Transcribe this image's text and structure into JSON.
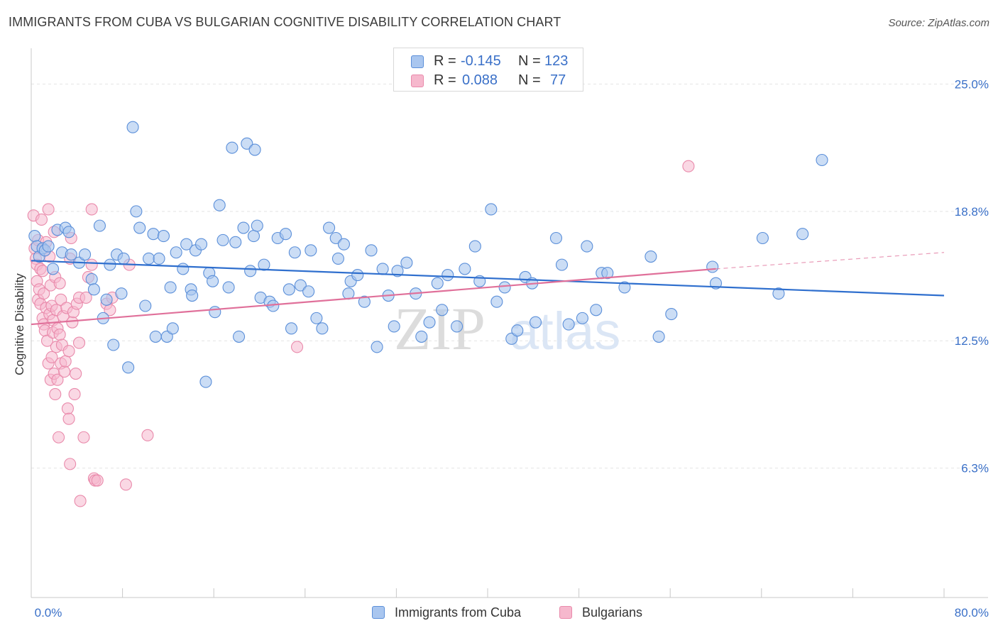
{
  "header": {
    "title": "IMMIGRANTS FROM CUBA VS BULGARIAN COGNITIVE DISABILITY CORRELATION CHART",
    "source": "Source: ZipAtlas.com"
  },
  "colors": {
    "blue_fill": "#a9c6ef",
    "blue_stroke": "#5b8fd9",
    "blue_line": "#2f6fce",
    "pink_fill": "#f6b8cd",
    "pink_stroke": "#e98aab",
    "pink_line": "#e0709a",
    "axis_text": "#3a70c8",
    "grid": "#e4e4e4"
  },
  "legend": {
    "series1": {
      "r_label": "R =",
      "r_value": "-0.145",
      "n_label": "N =",
      "n_value": "123"
    },
    "series2": {
      "r_label": "R =",
      "r_value": "0.088",
      "n_label": "N =",
      "n_value": "77"
    }
  },
  "bottom_legend": [
    "Immigrants from Cuba",
    "Bulgarians"
  ],
  "watermark": {
    "zip": "ZIP",
    "atlas": "atlas"
  },
  "chart_data": {
    "type": "scatter",
    "title": "IMMIGRANTS FROM CUBA VS BULGARIAN COGNITIVE DISABILITY CORRELATION CHART",
    "xlabel": "",
    "ylabel": "Cognitive Disability",
    "xlim": [
      0,
      80
    ],
    "ylim": [
      0,
      26.5
    ],
    "x_tick_labels": [
      "0.0%",
      "80.0%"
    ],
    "y_ticks": [
      6.3,
      12.5,
      18.8,
      25.0
    ],
    "y_tick_labels": [
      "6.3%",
      "12.5%",
      "18.8%",
      "25.0%"
    ],
    "grid": "horizontal dashed",
    "legend_placement": "top-center",
    "series": [
      {
        "name": "Immigrants from Cuba",
        "color": "#a9c6ef",
        "trend": {
          "x": [
            0,
            80
          ],
          "y": [
            16.4,
            14.7
          ]
        },
        "points": [
          [
            0.3,
            17.6
          ],
          [
            0.5,
            17.1
          ],
          [
            0.7,
            16.6
          ],
          [
            1.0,
            17.0
          ],
          [
            1.2,
            16.9
          ],
          [
            1.5,
            17.1
          ],
          [
            1.9,
            16.0
          ],
          [
            2.3,
            17.9
          ],
          [
            2.7,
            16.8
          ],
          [
            3.0,
            18.0
          ],
          [
            3.3,
            17.8
          ],
          [
            3.5,
            16.7
          ],
          [
            4.2,
            16.3
          ],
          [
            4.7,
            16.7
          ],
          [
            5.3,
            15.5
          ],
          [
            5.5,
            15.0
          ],
          [
            6.0,
            18.1
          ],
          [
            6.3,
            13.6
          ],
          [
            6.6,
            14.5
          ],
          [
            6.9,
            16.2
          ],
          [
            7.2,
            12.3
          ],
          [
            7.5,
            16.7
          ],
          [
            7.9,
            14.8
          ],
          [
            8.1,
            16.5
          ],
          [
            8.5,
            11.2
          ],
          [
            8.9,
            22.9
          ],
          [
            9.2,
            18.8
          ],
          [
            9.5,
            18.0
          ],
          [
            10.0,
            14.2
          ],
          [
            10.3,
            16.5
          ],
          [
            10.7,
            17.7
          ],
          [
            10.9,
            12.7
          ],
          [
            11.2,
            16.5
          ],
          [
            11.6,
            17.6
          ],
          [
            11.9,
            12.7
          ],
          [
            12.2,
            15.1
          ],
          [
            12.4,
            13.1
          ],
          [
            12.7,
            16.8
          ],
          [
            13.3,
            16.0
          ],
          [
            13.6,
            17.2
          ],
          [
            14.0,
            15.0
          ],
          [
            14.1,
            14.7
          ],
          [
            14.4,
            16.9
          ],
          [
            14.9,
            17.2
          ],
          [
            15.3,
            10.5
          ],
          [
            15.6,
            15.8
          ],
          [
            15.9,
            15.4
          ],
          [
            16.1,
            13.9
          ],
          [
            16.5,
            19.1
          ],
          [
            16.8,
            17.4
          ],
          [
            17.3,
            15.1
          ],
          [
            17.6,
            21.9
          ],
          [
            17.9,
            17.3
          ],
          [
            18.2,
            12.7
          ],
          [
            18.6,
            18.0
          ],
          [
            18.9,
            22.1
          ],
          [
            19.2,
            15.9
          ],
          [
            19.5,
            17.6
          ],
          [
            19.6,
            21.8
          ],
          [
            19.8,
            18.1
          ],
          [
            20.1,
            14.6
          ],
          [
            20.4,
            16.2
          ],
          [
            20.9,
            14.4
          ],
          [
            21.2,
            14.2
          ],
          [
            21.6,
            17.5
          ],
          [
            22.3,
            17.7
          ],
          [
            22.6,
            15.0
          ],
          [
            22.8,
            13.1
          ],
          [
            23.1,
            16.8
          ],
          [
            23.6,
            15.2
          ],
          [
            24.3,
            14.9
          ],
          [
            24.5,
            16.9
          ],
          [
            25.0,
            13.6
          ],
          [
            25.5,
            13.1
          ],
          [
            26.1,
            18.0
          ],
          [
            26.7,
            17.5
          ],
          [
            26.9,
            16.5
          ],
          [
            27.4,
            17.2
          ],
          [
            27.8,
            14.8
          ],
          [
            28.0,
            15.4
          ],
          [
            28.6,
            15.7
          ],
          [
            29.2,
            14.4
          ],
          [
            29.8,
            16.9
          ],
          [
            30.3,
            12.2
          ],
          [
            30.8,
            16.0
          ],
          [
            31.3,
            14.7
          ],
          [
            31.8,
            13.2
          ],
          [
            32.1,
            15.9
          ],
          [
            32.9,
            16.3
          ],
          [
            33.7,
            14.8
          ],
          [
            34.2,
            12.7
          ],
          [
            34.9,
            13.4
          ],
          [
            35.6,
            15.3
          ],
          [
            36.0,
            14.0
          ],
          [
            36.5,
            15.7
          ],
          [
            37.3,
            13.2
          ],
          [
            38.0,
            16.0
          ],
          [
            38.9,
            17.1
          ],
          [
            39.3,
            15.4
          ],
          [
            40.3,
            18.9
          ],
          [
            40.8,
            14.4
          ],
          [
            41.5,
            15.1
          ],
          [
            42.1,
            12.6
          ],
          [
            42.6,
            13.0
          ],
          [
            43.3,
            15.6
          ],
          [
            43.9,
            15.3
          ],
          [
            44.2,
            13.4
          ],
          [
            46.0,
            17.5
          ],
          [
            46.5,
            16.2
          ],
          [
            47.1,
            13.3
          ],
          [
            48.3,
            13.6
          ],
          [
            48.7,
            17.1
          ],
          [
            49.5,
            14.0
          ],
          [
            50.0,
            15.8
          ],
          [
            50.5,
            15.8
          ],
          [
            52.0,
            15.1
          ],
          [
            54.3,
            16.6
          ],
          [
            55.0,
            12.7
          ],
          [
            56.1,
            13.8
          ],
          [
            59.7,
            16.1
          ],
          [
            60.0,
            15.3
          ],
          [
            64.1,
            17.5
          ],
          [
            65.5,
            14.8
          ],
          [
            67.6,
            17.7
          ],
          [
            69.3,
            21.3
          ]
        ]
      },
      {
        "name": "Bulgarians",
        "color": "#f6b8cd",
        "trend": {
          "x": [
            0,
            60
          ],
          "y": [
            13.3,
            16.0
          ]
        },
        "trend_extension": {
          "x": [
            60,
            80
          ],
          "y": [
            16.0,
            16.8
          ]
        },
        "points": [
          [
            0.2,
            18.6
          ],
          [
            0.3,
            17.0
          ],
          [
            0.4,
            16.5
          ],
          [
            0.5,
            16.2
          ],
          [
            0.5,
            15.4
          ],
          [
            0.6,
            14.5
          ],
          [
            0.6,
            17.4
          ],
          [
            0.7,
            15.0
          ],
          [
            0.8,
            14.3
          ],
          [
            0.8,
            16.0
          ],
          [
            0.9,
            18.4
          ],
          [
            1.0,
            13.6
          ],
          [
            1.0,
            15.9
          ],
          [
            1.1,
            13.3
          ],
          [
            1.1,
            14.8
          ],
          [
            1.2,
            16.9
          ],
          [
            1.2,
            13.0
          ],
          [
            1.3,
            17.3
          ],
          [
            1.3,
            14.1
          ],
          [
            1.4,
            12.5
          ],
          [
            1.5,
            18.9
          ],
          [
            1.5,
            11.4
          ],
          [
            1.6,
            16.6
          ],
          [
            1.6,
            13.8
          ],
          [
            1.7,
            15.2
          ],
          [
            1.7,
            10.6
          ],
          [
            1.8,
            14.2
          ],
          [
            1.8,
            11.7
          ],
          [
            1.9,
            13.5
          ],
          [
            1.9,
            12.9
          ],
          [
            2.0,
            17.8
          ],
          [
            2.0,
            10.9
          ],
          [
            2.1,
            15.6
          ],
          [
            2.1,
            9.9
          ],
          [
            2.2,
            14.0
          ],
          [
            2.2,
            12.2
          ],
          [
            2.3,
            10.6
          ],
          [
            2.3,
            13.1
          ],
          [
            2.4,
            7.8
          ],
          [
            2.5,
            15.3
          ],
          [
            2.5,
            12.8
          ],
          [
            2.6,
            11.4
          ],
          [
            2.6,
            14.5
          ],
          [
            2.7,
            12.3
          ],
          [
            2.8,
            13.7
          ],
          [
            2.9,
            11.0
          ],
          [
            3.0,
            11.5
          ],
          [
            3.1,
            14.1
          ],
          [
            3.2,
            9.2
          ],
          [
            3.3,
            8.7
          ],
          [
            3.3,
            12.0
          ],
          [
            3.4,
            16.5
          ],
          [
            3.4,
            6.5
          ],
          [
            3.5,
            17.5
          ],
          [
            3.6,
            13.4
          ],
          [
            3.7,
            13.9
          ],
          [
            3.8,
            9.9
          ],
          [
            3.9,
            10.9
          ],
          [
            4.0,
            14.3
          ],
          [
            4.2,
            12.4
          ],
          [
            4.2,
            14.6
          ],
          [
            4.3,
            4.7
          ],
          [
            4.6,
            7.8
          ],
          [
            4.8,
            14.6
          ],
          [
            5.0,
            15.6
          ],
          [
            5.3,
            16.2
          ],
          [
            5.3,
            18.9
          ],
          [
            5.5,
            5.8
          ],
          [
            5.6,
            5.7
          ],
          [
            5.8,
            5.7
          ],
          [
            6.6,
            14.3
          ],
          [
            6.9,
            14.0
          ],
          [
            7.1,
            14.6
          ],
          [
            8.3,
            5.5
          ],
          [
            8.6,
            16.2
          ],
          [
            10.2,
            7.9
          ],
          [
            23.3,
            12.2
          ],
          [
            57.6,
            21.0
          ]
        ]
      }
    ]
  }
}
